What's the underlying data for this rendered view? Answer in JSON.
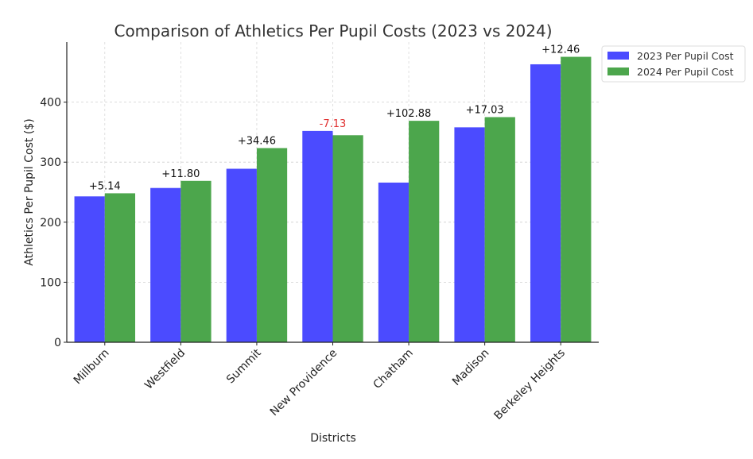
{
  "chart_data": {
    "type": "bar",
    "title": "Comparison of Athletics Per Pupil Costs (2023 vs 2024)",
    "xlabel": "Districts",
    "ylabel": "Athletics Per Pupil Cost ($)",
    "categories": [
      "Millburn",
      "Westfield",
      "Summit",
      "New Providence",
      "Chatham",
      "Madison",
      "Berkeley Heights"
    ],
    "series": [
      {
        "name": "2023 Per Pupil Cost",
        "color": "#4b4bff",
        "values": [
          243,
          257,
          289,
          352,
          266,
          358,
          463
        ]
      },
      {
        "name": "2024 Per Pupil Cost",
        "color": "#4ca64c",
        "values": [
          248.14,
          268.8,
          323.46,
          344.87,
          368.88,
          375.03,
          475.46
        ]
      }
    ],
    "annotations": [
      "+5.14",
      "+11.80",
      "+34.46",
      "-7.13",
      "+102.88",
      "+17.03",
      "+12.46"
    ],
    "annotation_colors": {
      "positive": "#111111",
      "negative": "#e03030"
    },
    "yticks": [
      0,
      100,
      200,
      300,
      400
    ],
    "ylim": [
      0,
      500
    ],
    "grid": true,
    "legend_position": "outside-top-right"
  }
}
